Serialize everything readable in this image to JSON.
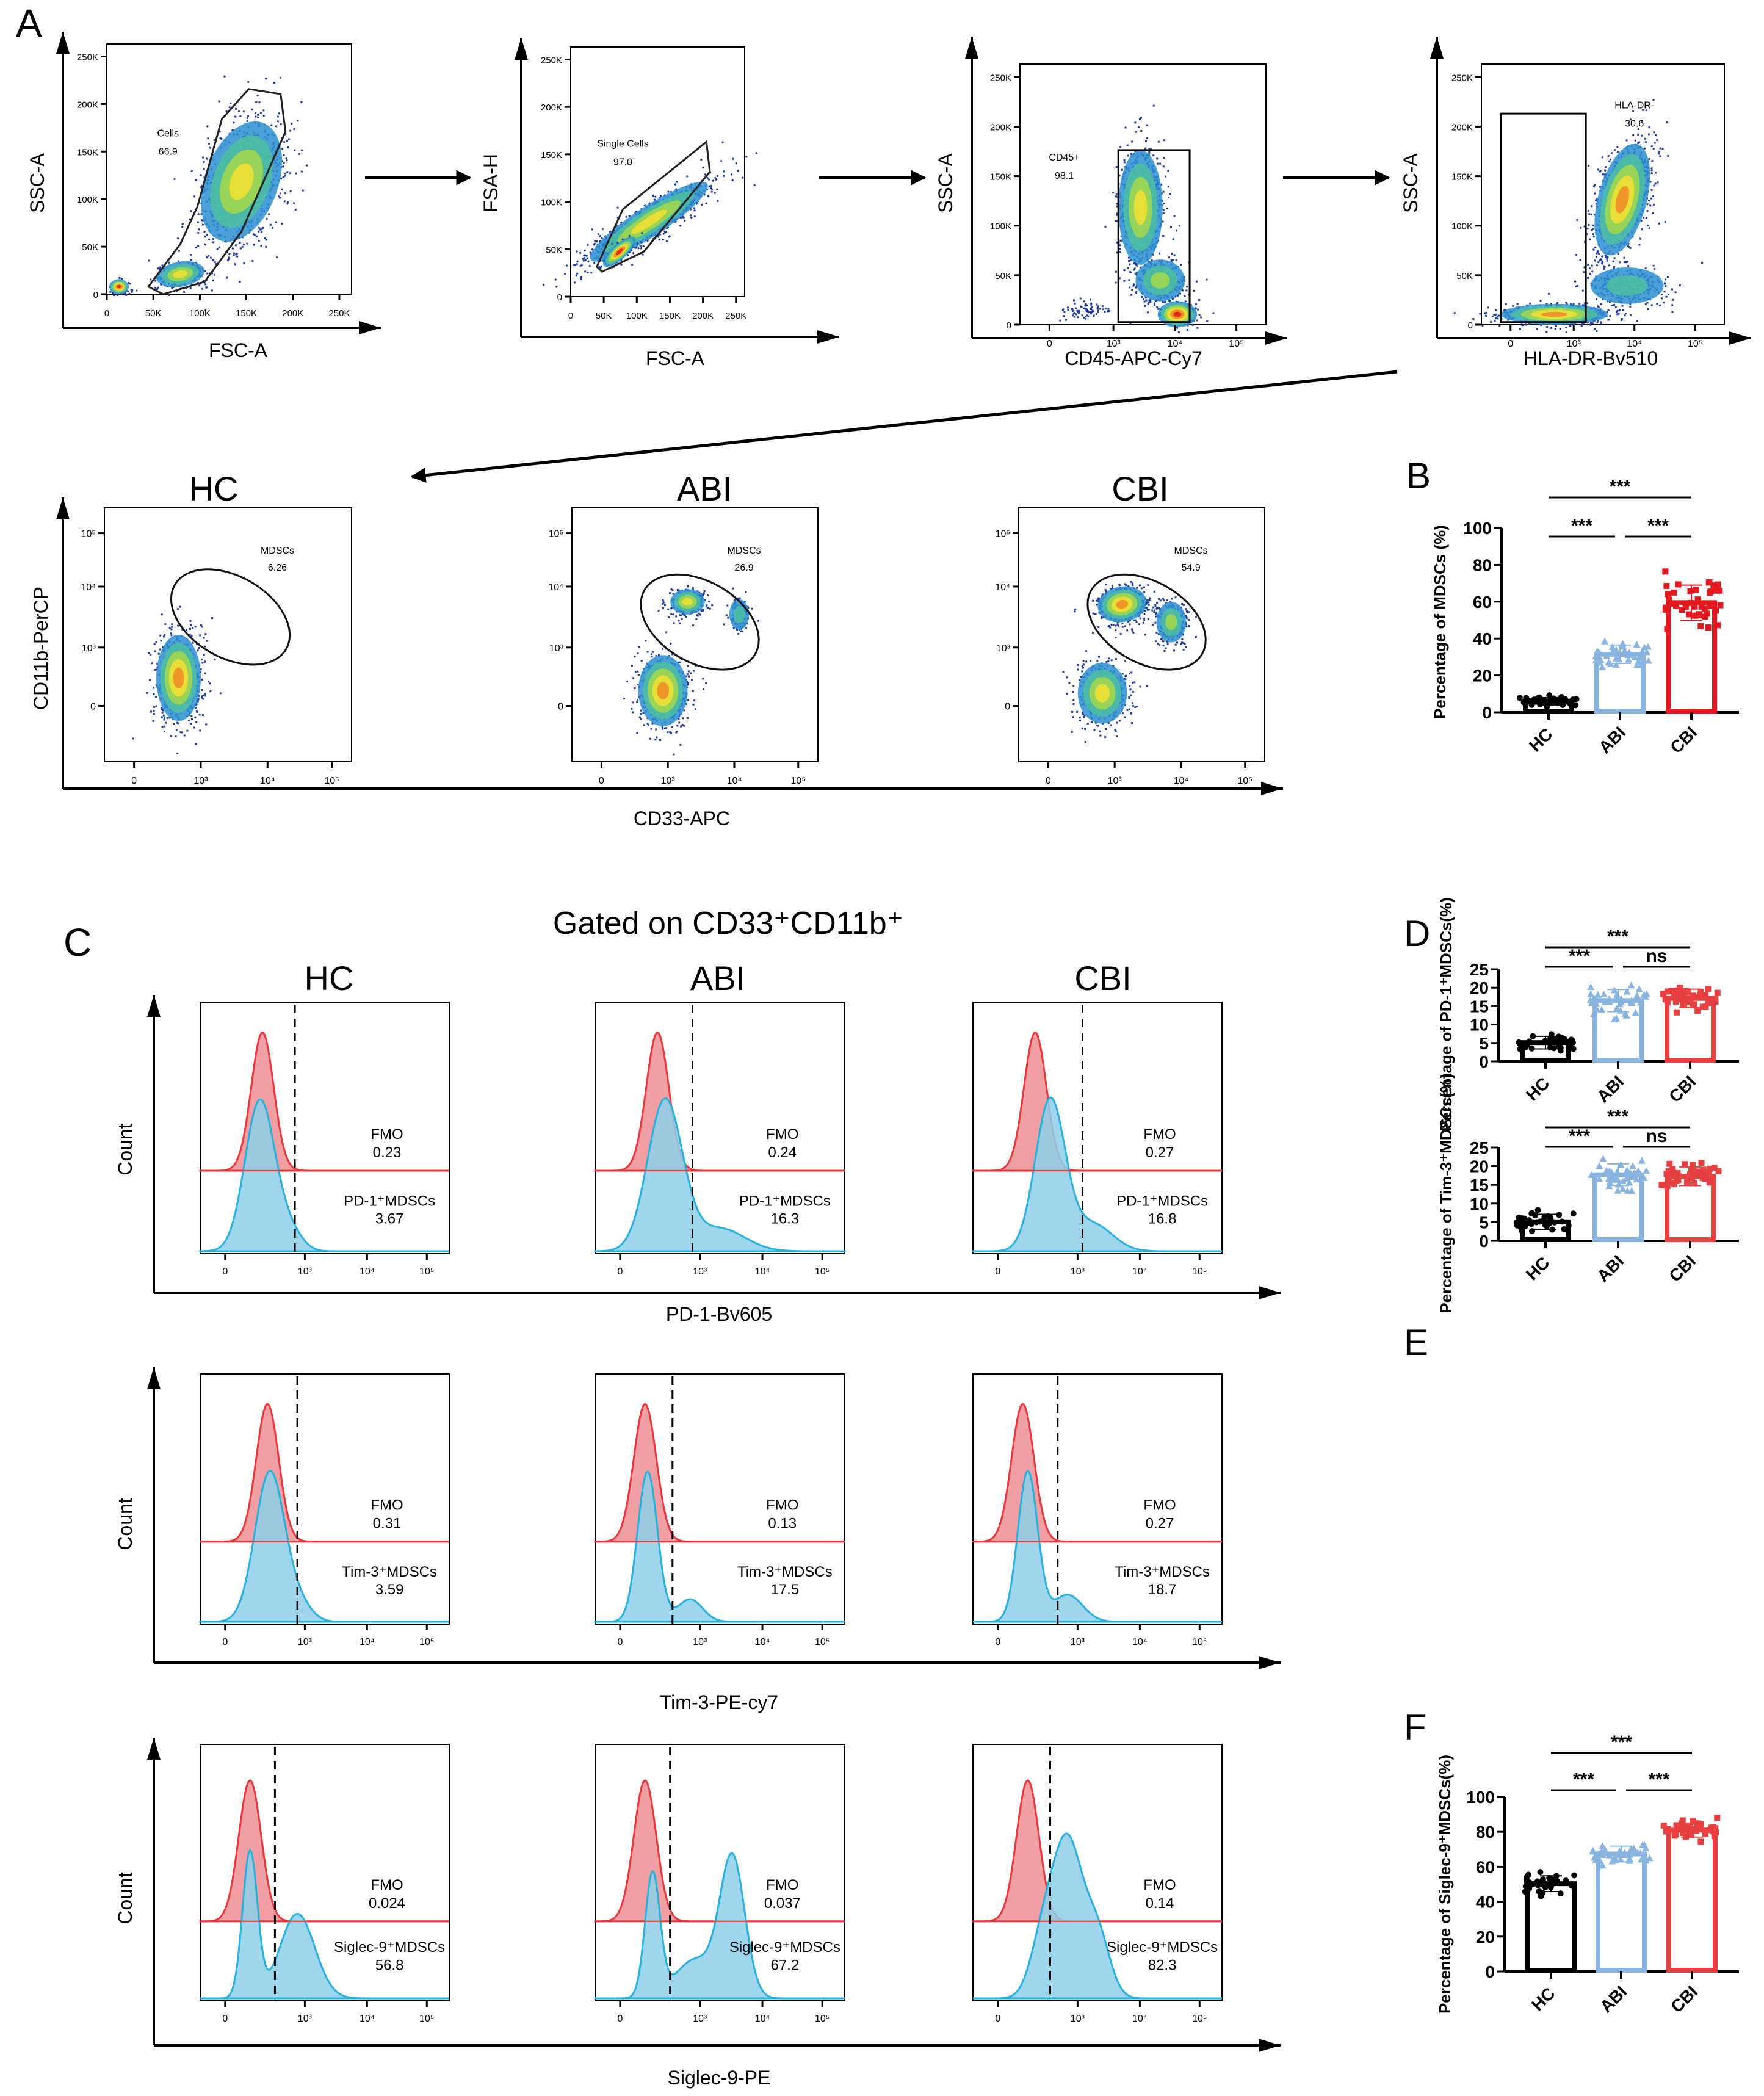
{
  "panel_labels": {
    "a": "A",
    "b": "B",
    "c": "C",
    "d": "D",
    "e": "E",
    "f": "F"
  },
  "panel_a": {
    "linear_ticks": [
      "0",
      "50K",
      "100K",
      "150K",
      "200K",
      "250K"
    ],
    "log_ticks": [
      "0",
      "10³",
      "10⁴",
      "10⁵"
    ],
    "plots": [
      {
        "ylabel": "SSC-A",
        "xlabel": "FSC-A",
        "gate_name": "Cells",
        "gate_value": "66.9"
      },
      {
        "ylabel": "FSA-H",
        "xlabel": "FSC-A",
        "gate_name": "Single Cells",
        "gate_value": "97.0"
      },
      {
        "ylabel": "SSC-A",
        "xlabel": "CD45-APC-Cy7",
        "gate_name": "CD45+",
        "gate_value": "98.1"
      },
      {
        "ylabel": "SSC-A",
        "xlabel": "HLA-DR-Bv510",
        "gate_name": "HLA-DR-",
        "gate_value": "30.6"
      }
    ]
  },
  "mdsc_gating": {
    "ylabel": "CD11b-PerCP",
    "xlabel": "CD33-APC",
    "ticks": [
      "0",
      "10³",
      "10⁴",
      "10⁵"
    ],
    "groups": [
      {
        "title": "HC",
        "gate_name": "MDSCs",
        "gate_value": "6.26"
      },
      {
        "title": "ABI",
        "gate_name": "MDSCs",
        "gate_value": "26.9"
      },
      {
        "title": "CBI",
        "gate_name": "MDSCs",
        "gate_value": "54.9"
      }
    ]
  },
  "panel_c": {
    "title": "Gated on CD33⁺CD11b⁺",
    "columns": [
      "HC",
      "ABI",
      "CBI"
    ],
    "ticks": [
      "0",
      "10³",
      "10⁴",
      "10⁵"
    ],
    "fmo_label": "FMO",
    "colors": {
      "fmo": "#e8383d",
      "fmo_fill": "#f0a0a3",
      "sample": "#2ab0dc",
      "sample_fill": "#8dd0ea"
    },
    "rows": [
      {
        "ylabel": "Count",
        "xlabel": "PD-1-Bv605",
        "marker_label": "PD-1⁺MDSCs",
        "fmo_values": [
          "0.23",
          "0.24",
          "0.27"
        ],
        "positive_values": [
          "3.67",
          "16.3",
          "16.8"
        ]
      },
      {
        "ylabel": "Count",
        "xlabel": "Tim-3-PE-cy7",
        "marker_label": "Tim-3⁺MDSCs",
        "fmo_values": [
          "0.31",
          "0.13",
          "0.27"
        ],
        "positive_values": [
          "3.59",
          "17.5",
          "18.7"
        ]
      },
      {
        "ylabel": "Count",
        "xlabel": "Siglec-9-PE",
        "marker_label": "Siglec-9⁺MDSCs",
        "fmo_values": [
          "0.024",
          "0.037",
          "0.14"
        ],
        "positive_values": [
          "56.8",
          "67.2",
          "82.3"
        ]
      }
    ]
  },
  "chart_data": [
    {
      "panel": "B",
      "type": "bar",
      "categories": [
        "HC",
        "ABI",
        "CBI"
      ],
      "ylabel": "Percentage of MDSCs (%)",
      "ylim": [
        0,
        100
      ],
      "yticks": [
        "0",
        "20",
        "40",
        "60",
        "80",
        "100"
      ],
      "means": [
        6,
        31.5,
        59.5
      ],
      "sd": [
        2,
        5,
        9.5
      ],
      "point_range": [
        [
          2,
          12
        ],
        [
          21,
          43
        ],
        [
          42,
          83
        ]
      ],
      "colors": [
        "#000000",
        "#8ab4e0",
        "#e3191f"
      ],
      "significance": [
        {
          "pair": [
            "HC",
            "ABI"
          ],
          "label": "***"
        },
        {
          "pair": [
            "ABI",
            "CBI"
          ],
          "label": "***"
        },
        {
          "pair": [
            "HC",
            "CBI"
          ],
          "label": "***"
        }
      ]
    },
    {
      "panel": "D",
      "type": "bar",
      "categories": [
        "HC",
        "ABI",
        "CBI"
      ],
      "ylabel": "Percentage of PD-1⁺MDSCs(%)",
      "ylim": [
        0,
        25
      ],
      "yticks": [
        "0",
        "5",
        "10",
        "15",
        "20",
        "25"
      ],
      "means": [
        5.1,
        16.5,
        17.1
      ],
      "sd": [
        1.7,
        3,
        2.5
      ],
      "point_range": [
        [
          1.8,
          9
        ],
        [
          10.7,
          20.8
        ],
        [
          13.2,
          22.5
        ]
      ],
      "colors": [
        "#000000",
        "#8ab4e0",
        "#e84040"
      ],
      "significance": [
        {
          "pair": [
            "HC",
            "ABI"
          ],
          "label": "***"
        },
        {
          "pair": [
            "ABI",
            "CBI"
          ],
          "label": "ns"
        },
        {
          "pair": [
            "HC",
            "CBI"
          ],
          "label": "***"
        }
      ]
    },
    {
      "panel": "E",
      "type": "bar",
      "categories": [
        "HC",
        "ABI",
        "CBI"
      ],
      "ylabel": "Percentage of Tim-3⁺MDSCs(%)",
      "ylim": [
        0,
        25
      ],
      "yticks": [
        "0",
        "5",
        "10",
        "15",
        "20",
        "25"
      ],
      "means": [
        5.1,
        17.7,
        17.3
      ],
      "sd": [
        2,
        2.9,
        2.5
      ],
      "point_range": [
        [
          1.3,
          9.8
        ],
        [
          12,
          22
        ],
        [
          12.6,
          20.9
        ]
      ],
      "colors": [
        "#000000",
        "#8ab4e0",
        "#e84040"
      ],
      "significance": [
        {
          "pair": [
            "HC",
            "ABI"
          ],
          "label": "***"
        },
        {
          "pair": [
            "ABI",
            "CBI"
          ],
          "label": "ns"
        },
        {
          "pair": [
            "HC",
            "CBI"
          ],
          "label": "***"
        }
      ]
    },
    {
      "panel": "F",
      "type": "bar",
      "categories": [
        "HC",
        "ABI",
        "CBI"
      ],
      "ylabel": "Percentage of Siglec-9⁺MDSCs(%)",
      "ylim": [
        0,
        100
      ],
      "yticks": [
        "0",
        "20",
        "40",
        "60",
        "80",
        "100"
      ],
      "means": [
        50.3,
        67.3,
        81
      ],
      "sd": [
        4.5,
        4.5,
        4
      ],
      "point_range": [
        [
          42,
          59
        ],
        [
          58,
          77
        ],
        [
          72,
          92
        ]
      ],
      "colors": [
        "#000000",
        "#8ab4e0",
        "#e84040"
      ],
      "significance": [
        {
          "pair": [
            "HC",
            "ABI"
          ],
          "label": "***"
        },
        {
          "pair": [
            "ABI",
            "CBI"
          ],
          "label": "***"
        },
        {
          "pair": [
            "HC",
            "CBI"
          ],
          "label": "***"
        }
      ]
    }
  ]
}
